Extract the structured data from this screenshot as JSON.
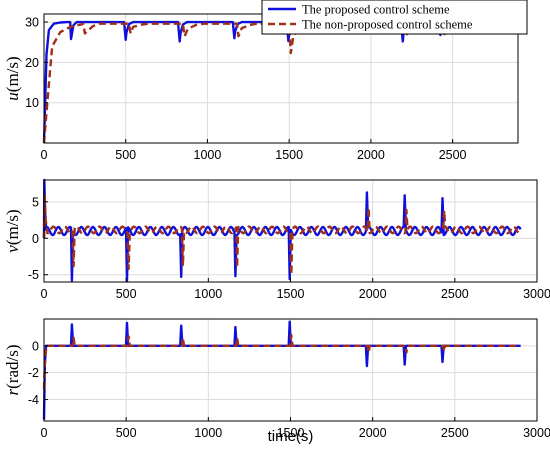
{
  "chart_data": [
    {
      "type": "line",
      "xlabel": "",
      "ylabel_var": "u",
      "ylabel_unit": "(m/s)",
      "xlim": [
        0,
        2900
      ],
      "ylim": [
        0,
        32
      ],
      "xticks": [
        0,
        500,
        1000,
        1500,
        2000,
        2500
      ],
      "yticks": [
        10,
        20,
        30
      ],
      "grid": true,
      "legend": {
        "placement": "top-right",
        "entries": [
          "The proposed control scheme",
          "The non-proposed control scheme"
        ]
      },
      "series": [
        {
          "name": "The proposed control scheme",
          "color": "#1010dd",
          "style": "solid",
          "x": [
            0,
            15,
            30,
            60,
            100,
            140,
            160,
            165,
            180,
            200,
            490,
            500,
            505,
            520,
            545,
            820,
            830,
            835,
            850,
            875,
            1155,
            1165,
            1170,
            1185,
            1210,
            1485,
            1495,
            1500,
            1515,
            1545,
            1955,
            1965,
            1970,
            1985,
            2005,
            2185,
            2195,
            2200,
            2215,
            2240,
            2415,
            2425,
            2430,
            2445,
            2470,
            2900
          ],
          "y": [
            0,
            22,
            28,
            29.6,
            29.9,
            30,
            30,
            25.8,
            29.2,
            30,
            30,
            25.6,
            27.5,
            29.5,
            30,
            30,
            25.2,
            27.2,
            29.4,
            30,
            30,
            26,
            27.8,
            29.5,
            30,
            30,
            25.3,
            27.2,
            29.4,
            30,
            30,
            28,
            28.8,
            29.7,
            30,
            30,
            25.2,
            27.3,
            29.4,
            30,
            30,
            26.8,
            28,
            29.6,
            30,
            30
          ]
        },
        {
          "name": "The non-proposed control scheme",
          "color": "#a0301a",
          "style": "dashed",
          "x": [
            0,
            20,
            50,
            100,
            160,
            200,
            230,
            240,
            250,
            300,
            340,
            520,
            530,
            545,
            600,
            640,
            850,
            860,
            880,
            930,
            980,
            1180,
            1190,
            1210,
            1260,
            1300,
            1500,
            1510,
            1525,
            1570,
            1620,
            1980,
            1990,
            2010,
            2060,
            2100,
            2210,
            2220,
            2240,
            2290,
            2330,
            2440,
            2450,
            2470,
            2520,
            2560,
            2900
          ],
          "y": [
            0,
            10,
            24,
            27.5,
            28.8,
            29.2,
            29.4,
            29.6,
            27.2,
            29,
            29.6,
            29.6,
            27.2,
            28.8,
            29.4,
            29.6,
            29.6,
            26.5,
            28.3,
            29.3,
            29.6,
            29.6,
            26.5,
            28.5,
            29.3,
            29.6,
            29.6,
            22.3,
            26.5,
            28.8,
            29.5,
            29.6,
            27,
            28.5,
            29.3,
            29.6,
            29.6,
            27,
            28.5,
            29.3,
            29.6,
            29.6,
            27,
            28.5,
            29.3,
            29.6,
            29.8
          ]
        }
      ]
    },
    {
      "type": "line",
      "xlabel": "",
      "ylabel_var": "v",
      "ylabel_unit": "(m/s)",
      "xlim": [
        0,
        3000
      ],
      "ylim": [
        -6,
        8
      ],
      "xticks": [
        0,
        500,
        1000,
        1500,
        2000,
        2500,
        3000
      ],
      "yticks": [
        -5,
        0,
        5
      ],
      "grid": true,
      "series": [
        {
          "name": "The proposed control scheme",
          "color": "#1010dd",
          "style": "solid",
          "base": 1.0,
          "amplitude": 0.55,
          "period": 70,
          "phase": 0,
          "xmax": 2900,
          "start": [
            [
              0,
              0
            ],
            [
              2,
              8
            ],
            [
              6,
              4
            ],
            [
              12,
              1.2
            ]
          ],
          "spikes": [
            [
              170,
              -5.8
            ],
            [
              505,
              -5.8
            ],
            [
              835,
              -5.3
            ],
            [
              1165,
              -5.2
            ],
            [
              1495,
              -5.6
            ],
            [
              1965,
              6.3
            ],
            [
              2195,
              5.9
            ],
            [
              2425,
              5.5
            ]
          ]
        },
        {
          "name": "The non-proposed control scheme",
          "color": "#a0301a",
          "style": "dashed",
          "base": 1.15,
          "amplitude": 0.45,
          "period": 70,
          "phase": 30,
          "xmax": 2900,
          "start": [
            [
              0,
              0
            ],
            [
              4,
              6
            ],
            [
              10,
              2.5
            ],
            [
              20,
              1.3
            ]
          ],
          "spikes": [
            [
              180,
              -3.8
            ],
            [
              515,
              -4.2
            ],
            [
              845,
              -3.8
            ],
            [
              1175,
              -4.0
            ],
            [
              1505,
              -5.0
            ],
            [
              1975,
              4.2
            ],
            [
              2205,
              3.9
            ],
            [
              2435,
              3.8
            ]
          ]
        }
      ]
    },
    {
      "type": "line",
      "xlabel": "time(s)",
      "ylabel_var": "r",
      "ylabel_unit": "(rad/s)",
      "xlim": [
        0,
        3000
      ],
      "ylim": [
        -5.6,
        2
      ],
      "xticks": [
        0,
        500,
        1000,
        1500,
        2000,
        2500,
        3000
      ],
      "yticks": [
        -4,
        -2,
        0
      ],
      "grid": true,
      "series": [
        {
          "name": "The proposed control scheme",
          "color": "#1010dd",
          "style": "solid",
          "base": 0,
          "xmax": 2900,
          "start": [
            [
              0,
              -5.5
            ],
            [
              5,
              -1.5
            ],
            [
              12,
              0
            ]
          ],
          "spikes": [
            [
              170,
              1.6
            ],
            [
              505,
              1.7
            ],
            [
              835,
              1.5
            ],
            [
              1165,
              1.4
            ],
            [
              1495,
              1.8
            ],
            [
              1965,
              -1.5
            ],
            [
              2195,
              -1.4
            ],
            [
              2425,
              -1.2
            ]
          ]
        },
        {
          "name": "The non-proposed control scheme",
          "color": "#a0301a",
          "style": "dashed",
          "base": 0,
          "xmax": 2900,
          "start": [
            [
              0,
              -3.2
            ],
            [
              6,
              -1.0
            ],
            [
              15,
              0
            ]
          ],
          "spikes": [
            [
              180,
              0.6
            ],
            [
              515,
              0.7
            ],
            [
              845,
              0.6
            ],
            [
              1175,
              0.6
            ],
            [
              1505,
              0.8
            ],
            [
              1975,
              -0.5
            ],
            [
              2205,
              -0.5
            ],
            [
              2435,
              -0.4
            ]
          ]
        }
      ]
    }
  ]
}
